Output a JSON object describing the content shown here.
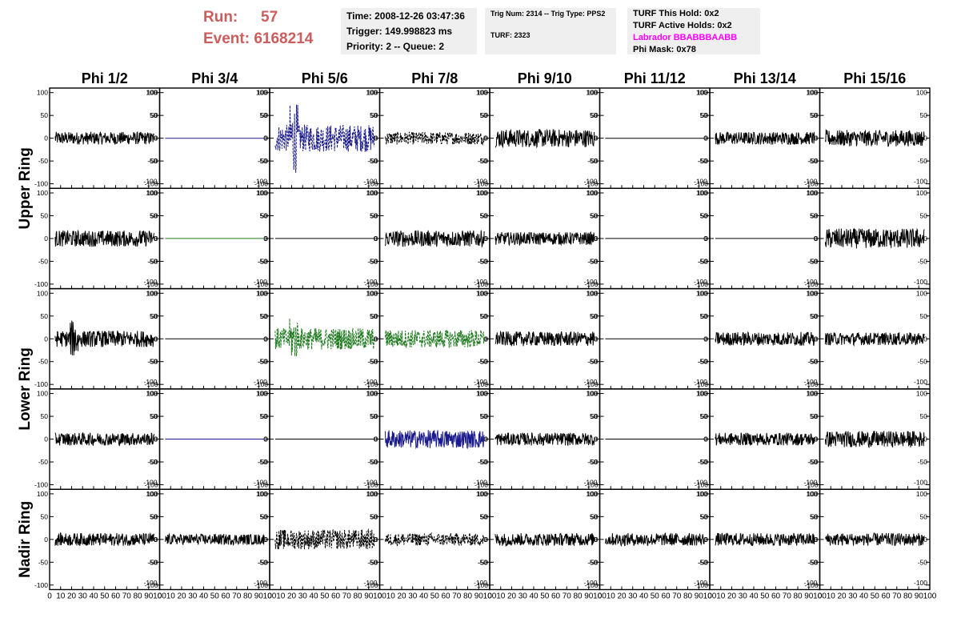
{
  "header": {
    "run_label": "Run:",
    "run_value": "57",
    "event_label": "Event:",
    "event_value": "6168214",
    "time": "Time: 2008-12-26 03:47:36",
    "trigger": "Trigger: 149.998823 ms",
    "priority": "Priority: 2 -- Queue: 2",
    "trig_num": "Trig Num: 2314 -- Trig Type: PPS2",
    "turf": "TURF: 2323",
    "turf_hold": "TURF This Hold: 0x2",
    "turf_active": "TURF Active Holds: 0x2",
    "labrador": "Labrador BBABBBAABB",
    "phi_mask": "Phi Mask: 0x78"
  },
  "chart_data": {
    "type": "line",
    "columns": [
      "Phi 1/2",
      "Phi 3/4",
      "Phi 5/6",
      "Phi 7/8",
      "Phi 9/10",
      "Phi 11/12",
      "Phi 13/14",
      "Phi 15/16"
    ],
    "rows": [
      "Upper Ring",
      "Lower Ring",
      "Nadir Ring"
    ],
    "xlim": [
      0,
      100
    ],
    "ylim": [
      -110,
      110
    ],
    "x_ticks": [
      0,
      10,
      20,
      30,
      40,
      50,
      60,
      70,
      80,
      90,
      100
    ],
    "x_tick_labels": [
      "0",
      "10",
      "20",
      "30",
      "40",
      "50",
      "60",
      "70",
      "80",
      "90",
      "100"
    ],
    "y_ticks": [
      100,
      50,
      0,
      -50,
      -100
    ],
    "y_tick_labels": [
      "100",
      "50",
      "0",
      "-50",
      "-100"
    ],
    "colors": {
      "normal": "#000000",
      "blue": "#1a1a8c",
      "green": "#1f7a1f"
    },
    "panels": [
      [
        {
          "c": "normal",
          "a": 14,
          "d": false
        },
        {
          "c": "blue",
          "a": 0,
          "d": false
        },
        {
          "c": "blue",
          "a": 30,
          "d": true,
          "s": 85
        },
        {
          "c": "normal",
          "a": 14,
          "d": true
        },
        {
          "c": "normal",
          "a": 20,
          "d": false
        },
        {
          "c": "normal",
          "a": 0,
          "d": false
        },
        {
          "c": "normal",
          "a": 14,
          "d": false
        },
        {
          "c": "normal",
          "a": 18,
          "d": false
        }
      ],
      [
        {
          "c": "normal",
          "a": 18,
          "d": false
        },
        {
          "c": "green",
          "a": 0,
          "d": false
        },
        {
          "c": "normal",
          "a": 0,
          "d": false
        },
        {
          "c": "normal",
          "a": 18,
          "d": false
        },
        {
          "c": "normal",
          "a": 14,
          "d": false
        },
        {
          "c": "normal",
          "a": 0,
          "d": false
        },
        {
          "c": "normal",
          "a": 0,
          "d": false
        },
        {
          "c": "normal",
          "a": 22,
          "d": false
        }
      ],
      [
        {
          "c": "normal",
          "a": 18,
          "d": false,
          "s": 45
        },
        {
          "c": "normal",
          "a": 0,
          "d": false
        },
        {
          "c": "green",
          "a": 24,
          "d": true,
          "s": 50
        },
        {
          "c": "green",
          "a": 20,
          "d": true
        },
        {
          "c": "normal",
          "a": 16,
          "d": false
        },
        {
          "c": "normal",
          "a": 0,
          "d": false
        },
        {
          "c": "normal",
          "a": 15,
          "d": false
        },
        {
          "c": "normal",
          "a": 14,
          "d": false
        }
      ],
      [
        {
          "c": "normal",
          "a": 14,
          "d": false
        },
        {
          "c": "blue",
          "a": 0,
          "d": false
        },
        {
          "c": "normal",
          "a": 0,
          "d": false
        },
        {
          "c": "blue",
          "a": 20,
          "d": false
        },
        {
          "c": "normal",
          "a": 14,
          "d": false
        },
        {
          "c": "normal",
          "a": 0,
          "d": false
        },
        {
          "c": "normal",
          "a": 14,
          "d": false
        },
        {
          "c": "normal",
          "a": 18,
          "d": false
        }
      ],
      [
        {
          "c": "normal",
          "a": 14,
          "d": false
        },
        {
          "c": "normal",
          "a": 12,
          "d": false
        },
        {
          "c": "normal",
          "a": 22,
          "d": true
        },
        {
          "c": "normal",
          "a": 14,
          "d": true
        },
        {
          "c": "normal",
          "a": 14,
          "d": false
        },
        {
          "c": "normal",
          "a": 14,
          "d": false
        },
        {
          "c": "normal",
          "a": 14,
          "d": false
        },
        {
          "c": "normal",
          "a": 14,
          "d": false
        }
      ]
    ]
  }
}
